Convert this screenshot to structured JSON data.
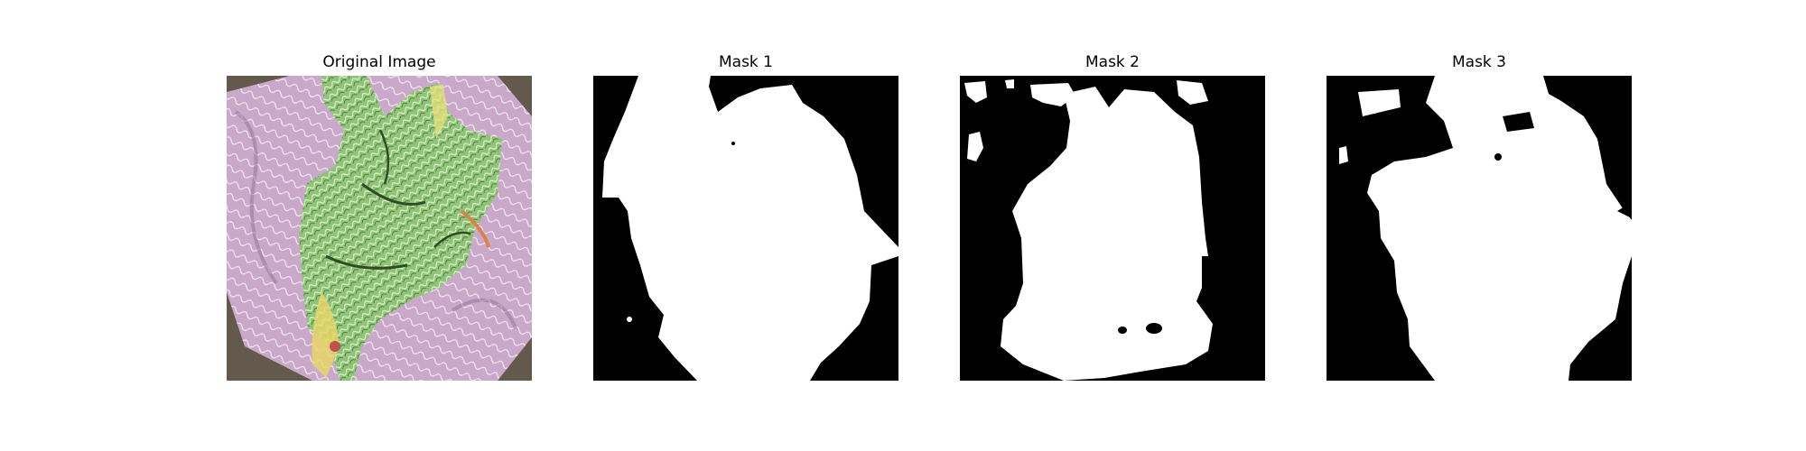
{
  "figure": {
    "panels": [
      {
        "title": "Original Image",
        "kind": "photo"
      },
      {
        "title": "Mask 1",
        "kind": "mask"
      },
      {
        "title": "Mask 2",
        "kind": "mask"
      },
      {
        "title": "Mask 3",
        "kind": "mask"
      }
    ]
  },
  "colors": {
    "mask_foreground": "#ffffff",
    "mask_background": "#000000",
    "leaf_green": "#8fc47a",
    "flower_purple": "#c9a8c9",
    "dark_background": "#5a5348"
  }
}
